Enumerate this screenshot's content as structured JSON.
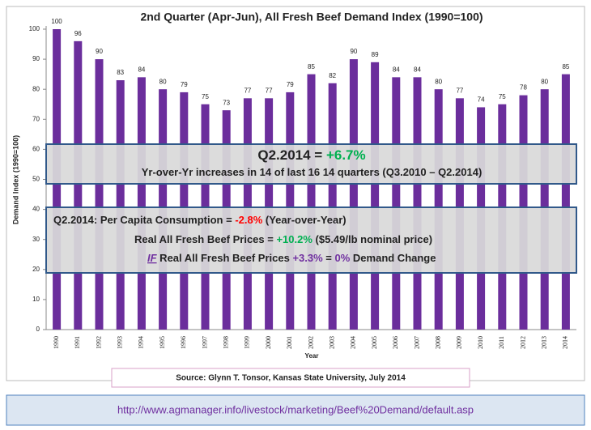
{
  "chart_data": {
    "type": "bar",
    "title": "2nd Quarter (Apr-Jun), All Fresh Beef Demand Index (1990=100)",
    "y_label": "Demand Index (1990=100)",
    "x_label": "Year",
    "categories": [
      "1990",
      "1991",
      "1992",
      "1993",
      "1994",
      "1995",
      "1996",
      "1997",
      "1998",
      "1999",
      "2000",
      "2001",
      "2002",
      "2003",
      "2004",
      "2005",
      "2006",
      "2007",
      "2008",
      "2009",
      "2010",
      "2011",
      "2012",
      "2013",
      "2014"
    ],
    "values": [
      100,
      96,
      90,
      83,
      84,
      80,
      79,
      75,
      73,
      77,
      77,
      79,
      85,
      82,
      90,
      89,
      84,
      84,
      80,
      77,
      74,
      75,
      78,
      80,
      85
    ],
    "color": "#6b2e9c",
    "ylim": [
      0,
      100
    ],
    "yticks": [
      0,
      10,
      20,
      30,
      40,
      50,
      60,
      70,
      80,
      90,
      100
    ],
    "annotations": {
      "headline": [
        [
          {
            "text": "Q2.2014 = "
          },
          {
            "text": "+6.7%",
            "color": "#00b050"
          }
        ],
        [
          {
            "text": "Yr-over-Yr increases in 14 of last 16 14 quarters (Q3.2010 – Q2.2014)"
          }
        ]
      ],
      "details": [
        [
          {
            "text": "Q2.2014: Per Capita Consumption = "
          },
          {
            "text": "-2.8%",
            "color": "#ff0000"
          },
          {
            "text": " (Year-over-Year)"
          }
        ],
        [
          {
            "text": "Real All Fresh Beef Prices = "
          },
          {
            "text": "+10.2%",
            "color": "#00b050"
          },
          {
            "text": " ($5.49/lb nominal price)"
          }
        ],
        [
          {
            "text": "IF",
            "color": "#7030a0",
            "italic": true,
            "underline": true
          },
          {
            "text": " Real All Fresh Beef Prices "
          },
          {
            "text": "+3.3%",
            "color": "#7030a0"
          },
          {
            "text": " = "
          },
          {
            "text": "0%",
            "color": "#7030a0"
          },
          {
            "text": " Demand Change"
          }
        ]
      ]
    },
    "source": "Source: Glynn T. Tonsor, Kansas State University, July 2014"
  },
  "url": "http://www.agmanager.info/livestock/marketing/Beef%20Demand/default.asp"
}
